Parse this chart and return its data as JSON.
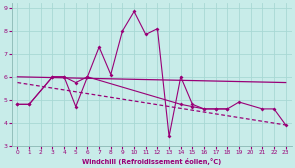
{
  "xlabel": "Windchill (Refroidissement éolien,°C)",
  "xlim": [
    -0.5,
    23.5
  ],
  "ylim": [
    3,
    9.2
  ],
  "xticks": [
    0,
    1,
    2,
    3,
    4,
    5,
    6,
    7,
    8,
    9,
    10,
    11,
    12,
    13,
    14,
    15,
    16,
    17,
    18,
    19,
    20,
    21,
    22,
    23
  ],
  "yticks": [
    3,
    4,
    5,
    6,
    7,
    8,
    9
  ],
  "bg_color": "#c8ece9",
  "line_color": "#990077",
  "grid_color": "#b0d8d4",
  "line1_x": [
    0,
    1,
    3,
    4,
    5,
    6,
    7,
    8,
    9,
    10,
    11,
    12,
    13,
    14,
    15,
    16,
    17,
    18,
    19,
    21,
    22,
    23
  ],
  "line1_y": [
    4.8,
    4.8,
    6.0,
    6.0,
    5.75,
    6.0,
    7.3,
    6.1,
    8.0,
    8.85,
    7.85,
    8.1,
    3.4,
    6.0,
    4.8,
    4.6,
    4.6,
    4.6,
    4.9,
    4.6,
    4.6,
    3.9
  ],
  "line2_x": [
    0,
    1,
    3,
    4,
    5,
    6,
    14,
    15,
    16,
    17,
    18
  ],
  "line2_y": [
    4.8,
    4.8,
    6.0,
    6.0,
    4.7,
    6.0,
    4.8,
    4.7,
    4.6,
    4.6,
    4.6
  ],
  "trend1_x": [
    0,
    23
  ],
  "trend1_y": [
    6.0,
    5.75
  ],
  "trend2_x": [
    0,
    23
  ],
  "trend2_y": [
    5.75,
    3.9
  ]
}
